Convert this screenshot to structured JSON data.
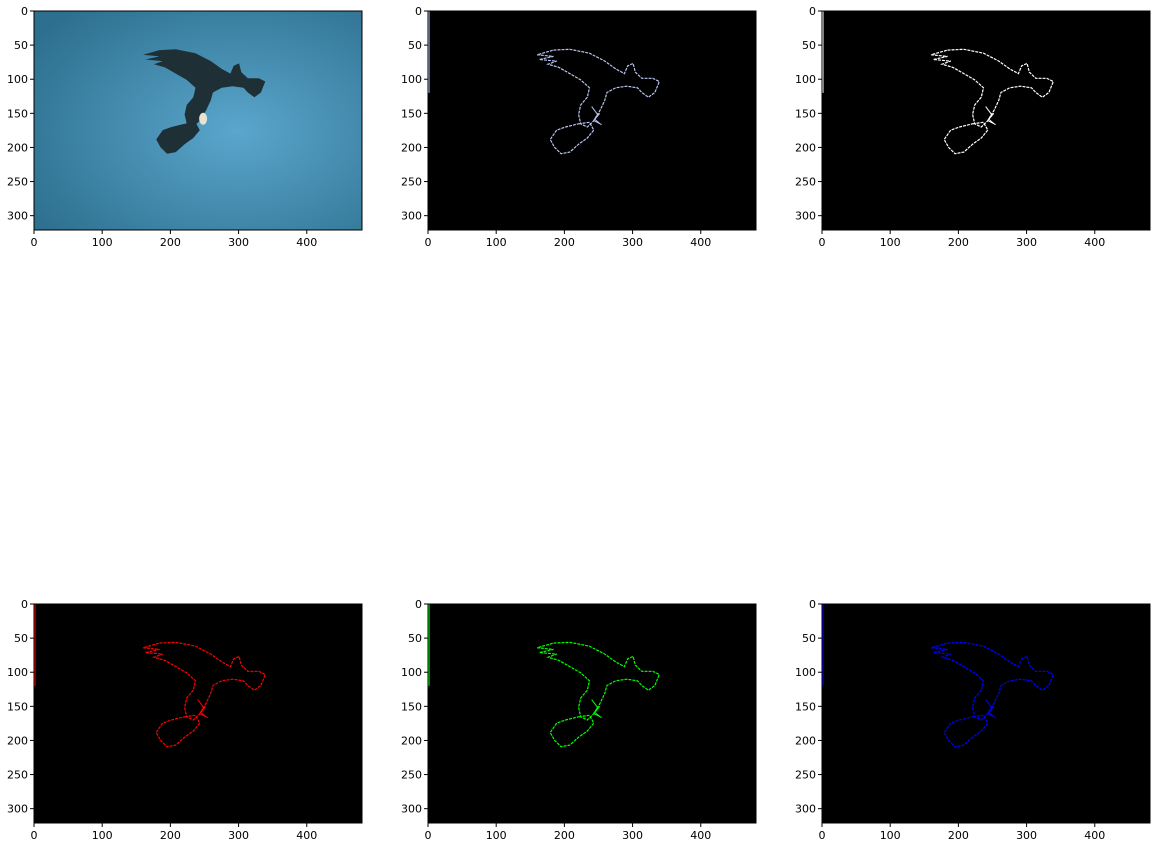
{
  "figure": {
    "panels": [
      {
        "id": "original",
        "image_kind": "photo",
        "edge_color": "",
        "bg_color": "#2d6f8e",
        "xticks": [
          "0",
          "100",
          "200",
          "300",
          "400"
        ],
        "yticks": [
          "0",
          "50",
          "100",
          "150",
          "200",
          "250",
          "300"
        ]
      },
      {
        "id": "edges-color",
        "image_kind": "edges",
        "edge_color": "#b8c4f0",
        "bg_color": "#000000",
        "xticks": [
          "0",
          "100",
          "200",
          "300",
          "400"
        ],
        "yticks": [
          "0",
          "50",
          "100",
          "150",
          "200",
          "250",
          "300"
        ]
      },
      {
        "id": "edges-white",
        "image_kind": "edges",
        "edge_color": "#ffffff",
        "bg_color": "#000000",
        "xticks": [
          "0",
          "100",
          "200",
          "300",
          "400"
        ],
        "yticks": [
          "0",
          "50",
          "100",
          "150",
          "200",
          "250",
          "300"
        ]
      },
      {
        "id": "edges-red",
        "image_kind": "edges",
        "edge_color": "#ff0000",
        "bg_color": "#000000",
        "xticks": [
          "0",
          "100",
          "200",
          "300",
          "400"
        ],
        "yticks": [
          "0",
          "50",
          "100",
          "150",
          "200",
          "250",
          "300"
        ]
      },
      {
        "id": "edges-green",
        "image_kind": "edges",
        "edge_color": "#00ff00",
        "bg_color": "#000000",
        "xticks": [
          "0",
          "100",
          "200",
          "300",
          "400"
        ],
        "yticks": [
          "0",
          "50",
          "100",
          "150",
          "200",
          "250",
          "300"
        ]
      },
      {
        "id": "edges-blue",
        "image_kind": "edges",
        "edge_color": "#0000ff",
        "bg_color": "#000000",
        "xticks": [
          "0",
          "100",
          "200",
          "300",
          "400"
        ],
        "yticks": [
          "0",
          "50",
          "100",
          "150",
          "200",
          "250",
          "300"
        ]
      }
    ]
  }
}
